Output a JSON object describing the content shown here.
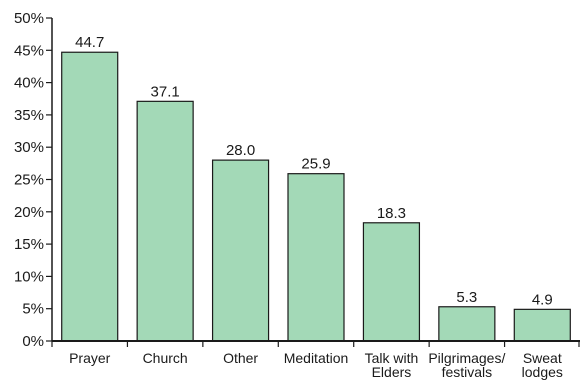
{
  "chart_data": {
    "type": "bar",
    "title": "",
    "xlabel": "",
    "ylabel": "",
    "categories": [
      [
        "Prayer"
      ],
      [
        "Church"
      ],
      [
        "Other"
      ],
      [
        "Meditation"
      ],
      [
        "Talk with",
        "Elders"
      ],
      [
        "Pilgrimages/",
        "festivals"
      ],
      [
        "Sweat",
        "lodges"
      ]
    ],
    "values": [
      44.7,
      37.1,
      28.0,
      25.9,
      18.3,
      5.3,
      4.9
    ],
    "value_labels": [
      "44.7",
      "37.1",
      "28.0",
      "25.9",
      "18.3",
      "5.3",
      "4.9"
    ],
    "ylim": [
      0,
      50
    ],
    "yticks": [
      "0%",
      "5%",
      "10%",
      "15%",
      "20%",
      "25%",
      "30%",
      "35%",
      "40%",
      "45%",
      "50%"
    ],
    "grid": false,
    "colors": {
      "bar_fill": "#a3d9b7",
      "bar_stroke": "#1a1a1a",
      "axis": "#1a1a1a",
      "text": "#1a1a1a"
    }
  }
}
